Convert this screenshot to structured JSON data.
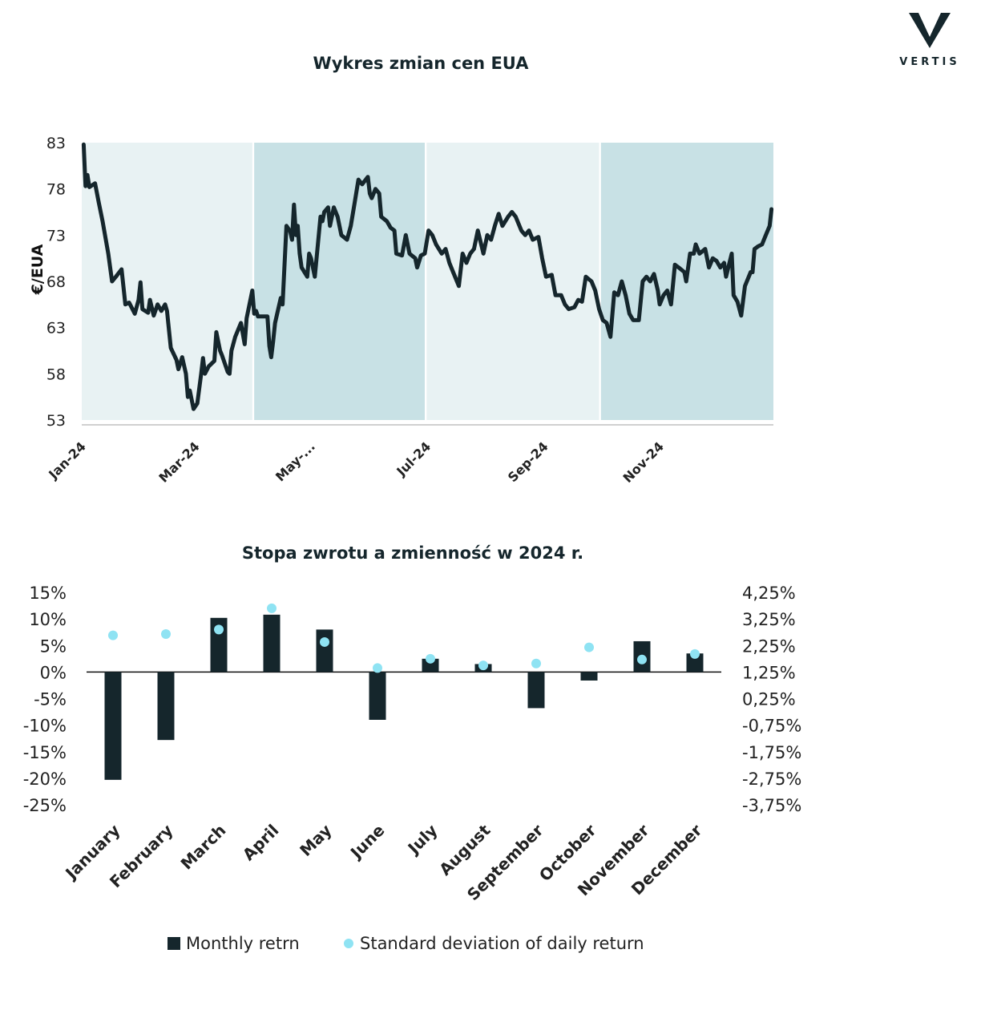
{
  "logo": {
    "text": "VERTIS"
  },
  "chart_data": [
    {
      "type": "line",
      "title": "Wykres zmian cen EUA",
      "ylabel": "€/EUA",
      "xlabel": "",
      "ylim": [
        53,
        83
      ],
      "yticks": [
        "83",
        "78",
        "73",
        "68",
        "63",
        "58",
        "53"
      ],
      "xticks": [
        {
          "label": "Jan-24",
          "date": "2024-01-01"
        },
        {
          "label": "Mar-24",
          "date": "2024-03-01"
        },
        {
          "label": "May-...",
          "date": "2024-05-01"
        },
        {
          "label": "Jul-24",
          "date": "2024-07-01"
        },
        {
          "label": "Sep-24",
          "date": "2024-09-01"
        },
        {
          "label": "Nov-24",
          "date": "2024-11-01"
        }
      ],
      "quarter_bands": [
        {
          "start": "2024-01-01",
          "end": "2024-03-31",
          "color": "#e8f2f3"
        },
        {
          "start": "2024-04-01",
          "end": "2024-06-30",
          "color": "#c8e1e5"
        },
        {
          "start": "2024-07-01",
          "end": "2024-09-30",
          "color": "#e8f2f3"
        },
        {
          "start": "2024-10-01",
          "end": "2024-12-31",
          "color": "#c8e1e5"
        }
      ],
      "line_color": "#15262c",
      "points": [
        [
          "2024-01-02",
          82.8
        ],
        [
          "2024-01-03",
          78.3
        ],
        [
          "2024-01-04",
          79.5
        ],
        [
          "2024-01-05",
          78.2
        ],
        [
          "2024-01-08",
          78.6
        ],
        [
          "2024-01-10",
          76.5
        ],
        [
          "2024-01-12",
          74.5
        ],
        [
          "2024-01-15",
          71.0
        ],
        [
          "2024-01-17",
          68.0
        ],
        [
          "2024-01-19",
          68.5
        ],
        [
          "2024-01-22",
          69.3
        ],
        [
          "2024-01-24",
          65.5
        ],
        [
          "2024-01-26",
          65.7
        ],
        [
          "2024-01-29",
          64.5
        ],
        [
          "2024-01-31",
          66.0
        ],
        [
          "2024-02-01",
          67.9
        ],
        [
          "2024-02-02",
          65.0
        ],
        [
          "2024-02-05",
          64.6
        ],
        [
          "2024-02-06",
          66.0
        ],
        [
          "2024-02-08",
          64.3
        ],
        [
          "2024-02-10",
          65.5
        ],
        [
          "2024-02-12",
          64.8
        ],
        [
          "2024-02-14",
          65.5
        ],
        [
          "2024-02-15",
          64.8
        ],
        [
          "2024-02-17",
          60.8
        ],
        [
          "2024-02-20",
          59.5
        ],
        [
          "2024-02-21",
          58.5
        ],
        [
          "2024-02-23",
          59.8
        ],
        [
          "2024-02-25",
          58.0
        ],
        [
          "2024-02-26",
          55.5
        ],
        [
          "2024-02-27",
          56.2
        ],
        [
          "2024-02-29",
          54.2
        ],
        [
          "2024-03-02",
          54.8
        ],
        [
          "2024-03-04",
          58.0
        ],
        [
          "2024-03-05",
          59.7
        ],
        [
          "2024-03-06",
          58.0
        ],
        [
          "2024-03-08",
          58.8
        ],
        [
          "2024-03-11",
          59.4
        ],
        [
          "2024-03-12",
          62.5
        ],
        [
          "2024-03-14",
          60.5
        ],
        [
          "2024-03-15",
          60.0
        ],
        [
          "2024-03-18",
          58.2
        ],
        [
          "2024-03-19",
          58.0
        ],
        [
          "2024-03-20",
          60.5
        ],
        [
          "2024-03-22",
          62.0
        ],
        [
          "2024-03-25",
          63.5
        ],
        [
          "2024-03-27",
          61.2
        ],
        [
          "2024-03-28",
          64.0
        ],
        [
          "2024-03-31",
          67.0
        ],
        [
          "2024-04-01",
          64.5
        ],
        [
          "2024-04-02",
          64.8
        ],
        [
          "2024-04-03",
          64.2
        ],
        [
          "2024-04-05",
          64.2
        ],
        [
          "2024-04-08",
          64.2
        ],
        [
          "2024-04-09",
          61.0
        ],
        [
          "2024-04-10",
          59.8
        ],
        [
          "2024-04-11",
          61.5
        ],
        [
          "2024-04-12",
          63.5
        ],
        [
          "2024-04-15",
          66.2
        ],
        [
          "2024-04-16",
          65.5
        ],
        [
          "2024-04-18",
          74.0
        ],
        [
          "2024-04-20",
          73.4
        ],
        [
          "2024-04-21",
          72.5
        ],
        [
          "2024-04-22",
          76.3
        ],
        [
          "2024-04-23",
          73.0
        ],
        [
          "2024-04-24",
          74.0
        ],
        [
          "2024-04-25",
          71.0
        ],
        [
          "2024-04-26",
          69.5
        ],
        [
          "2024-04-29",
          68.5
        ],
        [
          "2024-04-30",
          71.0
        ],
        [
          "2024-05-01",
          70.5
        ],
        [
          "2024-05-03",
          68.5
        ],
        [
          "2024-05-06",
          75.0
        ],
        [
          "2024-05-07",
          74.5
        ],
        [
          "2024-05-08",
          75.5
        ],
        [
          "2024-05-10",
          76.0
        ],
        [
          "2024-05-11",
          74.0
        ],
        [
          "2024-05-13",
          76.0
        ],
        [
          "2024-05-15",
          75.0
        ],
        [
          "2024-05-17",
          73.0
        ],
        [
          "2024-05-20",
          72.5
        ],
        [
          "2024-05-22",
          74.0
        ],
        [
          "2024-05-24",
          76.5
        ],
        [
          "2024-05-26",
          79.0
        ],
        [
          "2024-05-28",
          78.5
        ],
        [
          "2024-05-31",
          79.3
        ],
        [
          "2024-06-01",
          77.5
        ],
        [
          "2024-06-02",
          77.0
        ],
        [
          "2024-06-04",
          78.0
        ],
        [
          "2024-06-06",
          77.5
        ],
        [
          "2024-06-07",
          75.0
        ],
        [
          "2024-06-10",
          74.5
        ],
        [
          "2024-06-12",
          73.8
        ],
        [
          "2024-06-14",
          73.5
        ],
        [
          "2024-06-15",
          71.0
        ],
        [
          "2024-06-18",
          70.8
        ],
        [
          "2024-06-20",
          73.0
        ],
        [
          "2024-06-22",
          71.0
        ],
        [
          "2024-06-25",
          70.5
        ],
        [
          "2024-06-26",
          69.5
        ],
        [
          "2024-06-28",
          70.8
        ],
        [
          "2024-06-30",
          71.0
        ],
        [
          "2024-07-02",
          73.5
        ],
        [
          "2024-07-04",
          73.0
        ],
        [
          "2024-07-06",
          72.0
        ],
        [
          "2024-07-09",
          71.0
        ],
        [
          "2024-07-11",
          71.5
        ],
        [
          "2024-07-13",
          70.0
        ],
        [
          "2024-07-15",
          69.0
        ],
        [
          "2024-07-18",
          67.5
        ],
        [
          "2024-07-20",
          71.0
        ],
        [
          "2024-07-22",
          70.0
        ],
        [
          "2024-07-24",
          71.0
        ],
        [
          "2024-07-26",
          71.5
        ],
        [
          "2024-07-28",
          73.5
        ],
        [
          "2024-07-31",
          71.0
        ],
        [
          "2024-08-02",
          73.0
        ],
        [
          "2024-08-04",
          72.5
        ],
        [
          "2024-08-06",
          74.0
        ],
        [
          "2024-08-08",
          75.3
        ],
        [
          "2024-08-10",
          74.0
        ],
        [
          "2024-08-13",
          75.0
        ],
        [
          "2024-08-15",
          75.5
        ],
        [
          "2024-08-17",
          75.0
        ],
        [
          "2024-08-20",
          73.5
        ],
        [
          "2024-08-22",
          73.0
        ],
        [
          "2024-08-24",
          73.5
        ],
        [
          "2024-08-26",
          72.5
        ],
        [
          "2024-08-29",
          72.8
        ],
        [
          "2024-08-31",
          70.5
        ],
        [
          "2024-09-02",
          68.5
        ],
        [
          "2024-09-05",
          68.7
        ],
        [
          "2024-09-07",
          66.5
        ],
        [
          "2024-09-10",
          66.5
        ],
        [
          "2024-09-12",
          65.5
        ],
        [
          "2024-09-14",
          65.0
        ],
        [
          "2024-09-17",
          65.2
        ],
        [
          "2024-09-19",
          66.0
        ],
        [
          "2024-09-21",
          65.8
        ],
        [
          "2024-09-23",
          68.5
        ],
        [
          "2024-09-26",
          68.0
        ],
        [
          "2024-09-28",
          67.0
        ],
        [
          "2024-09-30",
          65.0
        ],
        [
          "2024-10-02",
          63.8
        ],
        [
          "2024-10-04",
          63.5
        ],
        [
          "2024-10-06",
          62.0
        ],
        [
          "2024-10-08",
          66.8
        ],
        [
          "2024-10-10",
          66.5
        ],
        [
          "2024-10-12",
          68.0
        ],
        [
          "2024-10-14",
          66.5
        ],
        [
          "2024-10-16",
          64.5
        ],
        [
          "2024-10-18",
          63.8
        ],
        [
          "2024-10-21",
          63.8
        ],
        [
          "2024-10-23",
          68.0
        ],
        [
          "2024-10-25",
          68.5
        ],
        [
          "2024-10-27",
          68.0
        ],
        [
          "2024-10-29",
          68.8
        ],
        [
          "2024-10-31",
          67.0
        ],
        [
          "2024-11-01",
          65.5
        ],
        [
          "2024-11-03",
          66.5
        ],
        [
          "2024-11-05",
          67.0
        ],
        [
          "2024-11-07",
          65.5
        ],
        [
          "2024-11-09",
          69.8
        ],
        [
          "2024-11-11",
          69.5
        ],
        [
          "2024-11-14",
          69.0
        ],
        [
          "2024-11-15",
          68.0
        ],
        [
          "2024-11-17",
          71.0
        ],
        [
          "2024-11-19",
          71.0
        ],
        [
          "2024-11-20",
          72.0
        ],
        [
          "2024-11-22",
          71.0
        ],
        [
          "2024-11-25",
          71.5
        ],
        [
          "2024-11-27",
          69.5
        ],
        [
          "2024-11-29",
          70.5
        ],
        [
          "2024-12-01",
          70.2
        ],
        [
          "2024-12-03",
          69.5
        ],
        [
          "2024-12-05",
          70.0
        ],
        [
          "2024-12-06",
          68.5
        ],
        [
          "2024-12-09",
          71.0
        ],
        [
          "2024-12-10",
          66.5
        ],
        [
          "2024-12-12",
          65.8
        ],
        [
          "2024-12-14",
          64.3
        ],
        [
          "2024-12-16",
          67.5
        ],
        [
          "2024-12-19",
          69.0
        ],
        [
          "2024-12-20",
          69.0
        ],
        [
          "2024-12-21",
          71.5
        ],
        [
          "2024-12-23",
          71.8
        ],
        [
          "2024-12-25",
          72.0
        ],
        [
          "2024-12-27",
          73.0
        ],
        [
          "2024-12-29",
          74.0
        ],
        [
          "2024-12-30",
          75.8
        ]
      ]
    },
    {
      "type": "bar",
      "title": "Stopa zwrotu a zmienność w 2024 r.",
      "xlabel": "",
      "ylabel": "",
      "categories": [
        "January",
        "February",
        "March",
        "April",
        "May",
        "June",
        "July",
        "August",
        "September",
        "October",
        "November",
        "December"
      ],
      "ylim_left": [
        -25,
        15
      ],
      "yticks_left": [
        "15%",
        "10%",
        "5%",
        "0%",
        "-5%",
        "-10%",
        "-15%",
        "-20%",
        "-25%"
      ],
      "ylim_right": [
        -3.75,
        4.25
      ],
      "yticks_right": [
        "4,25%",
        "3,25%",
        "2,25%",
        "1,25%",
        "0,25%",
        "-0,75%",
        "-1,75%",
        "-2,75%",
        "-3,75%"
      ],
      "series": [
        {
          "name": "Monthly retrn",
          "type": "bar",
          "axis": "left",
          "color": "#15262c",
          "values": [
            -20.3,
            -12.8,
            10.2,
            10.8,
            8.0,
            -9.0,
            2.5,
            1.5,
            -6.8,
            -1.6,
            5.8,
            3.5
          ]
        },
        {
          "name": "Standard deviation of daily return",
          "type": "scatter",
          "axis": "right",
          "color": "#8fe3f3",
          "values": [
            2.63,
            2.68,
            2.85,
            3.65,
            2.38,
            1.4,
            1.75,
            1.5,
            1.57,
            2.18,
            1.72,
            1.93
          ]
        }
      ],
      "legend": "bottom"
    }
  ]
}
